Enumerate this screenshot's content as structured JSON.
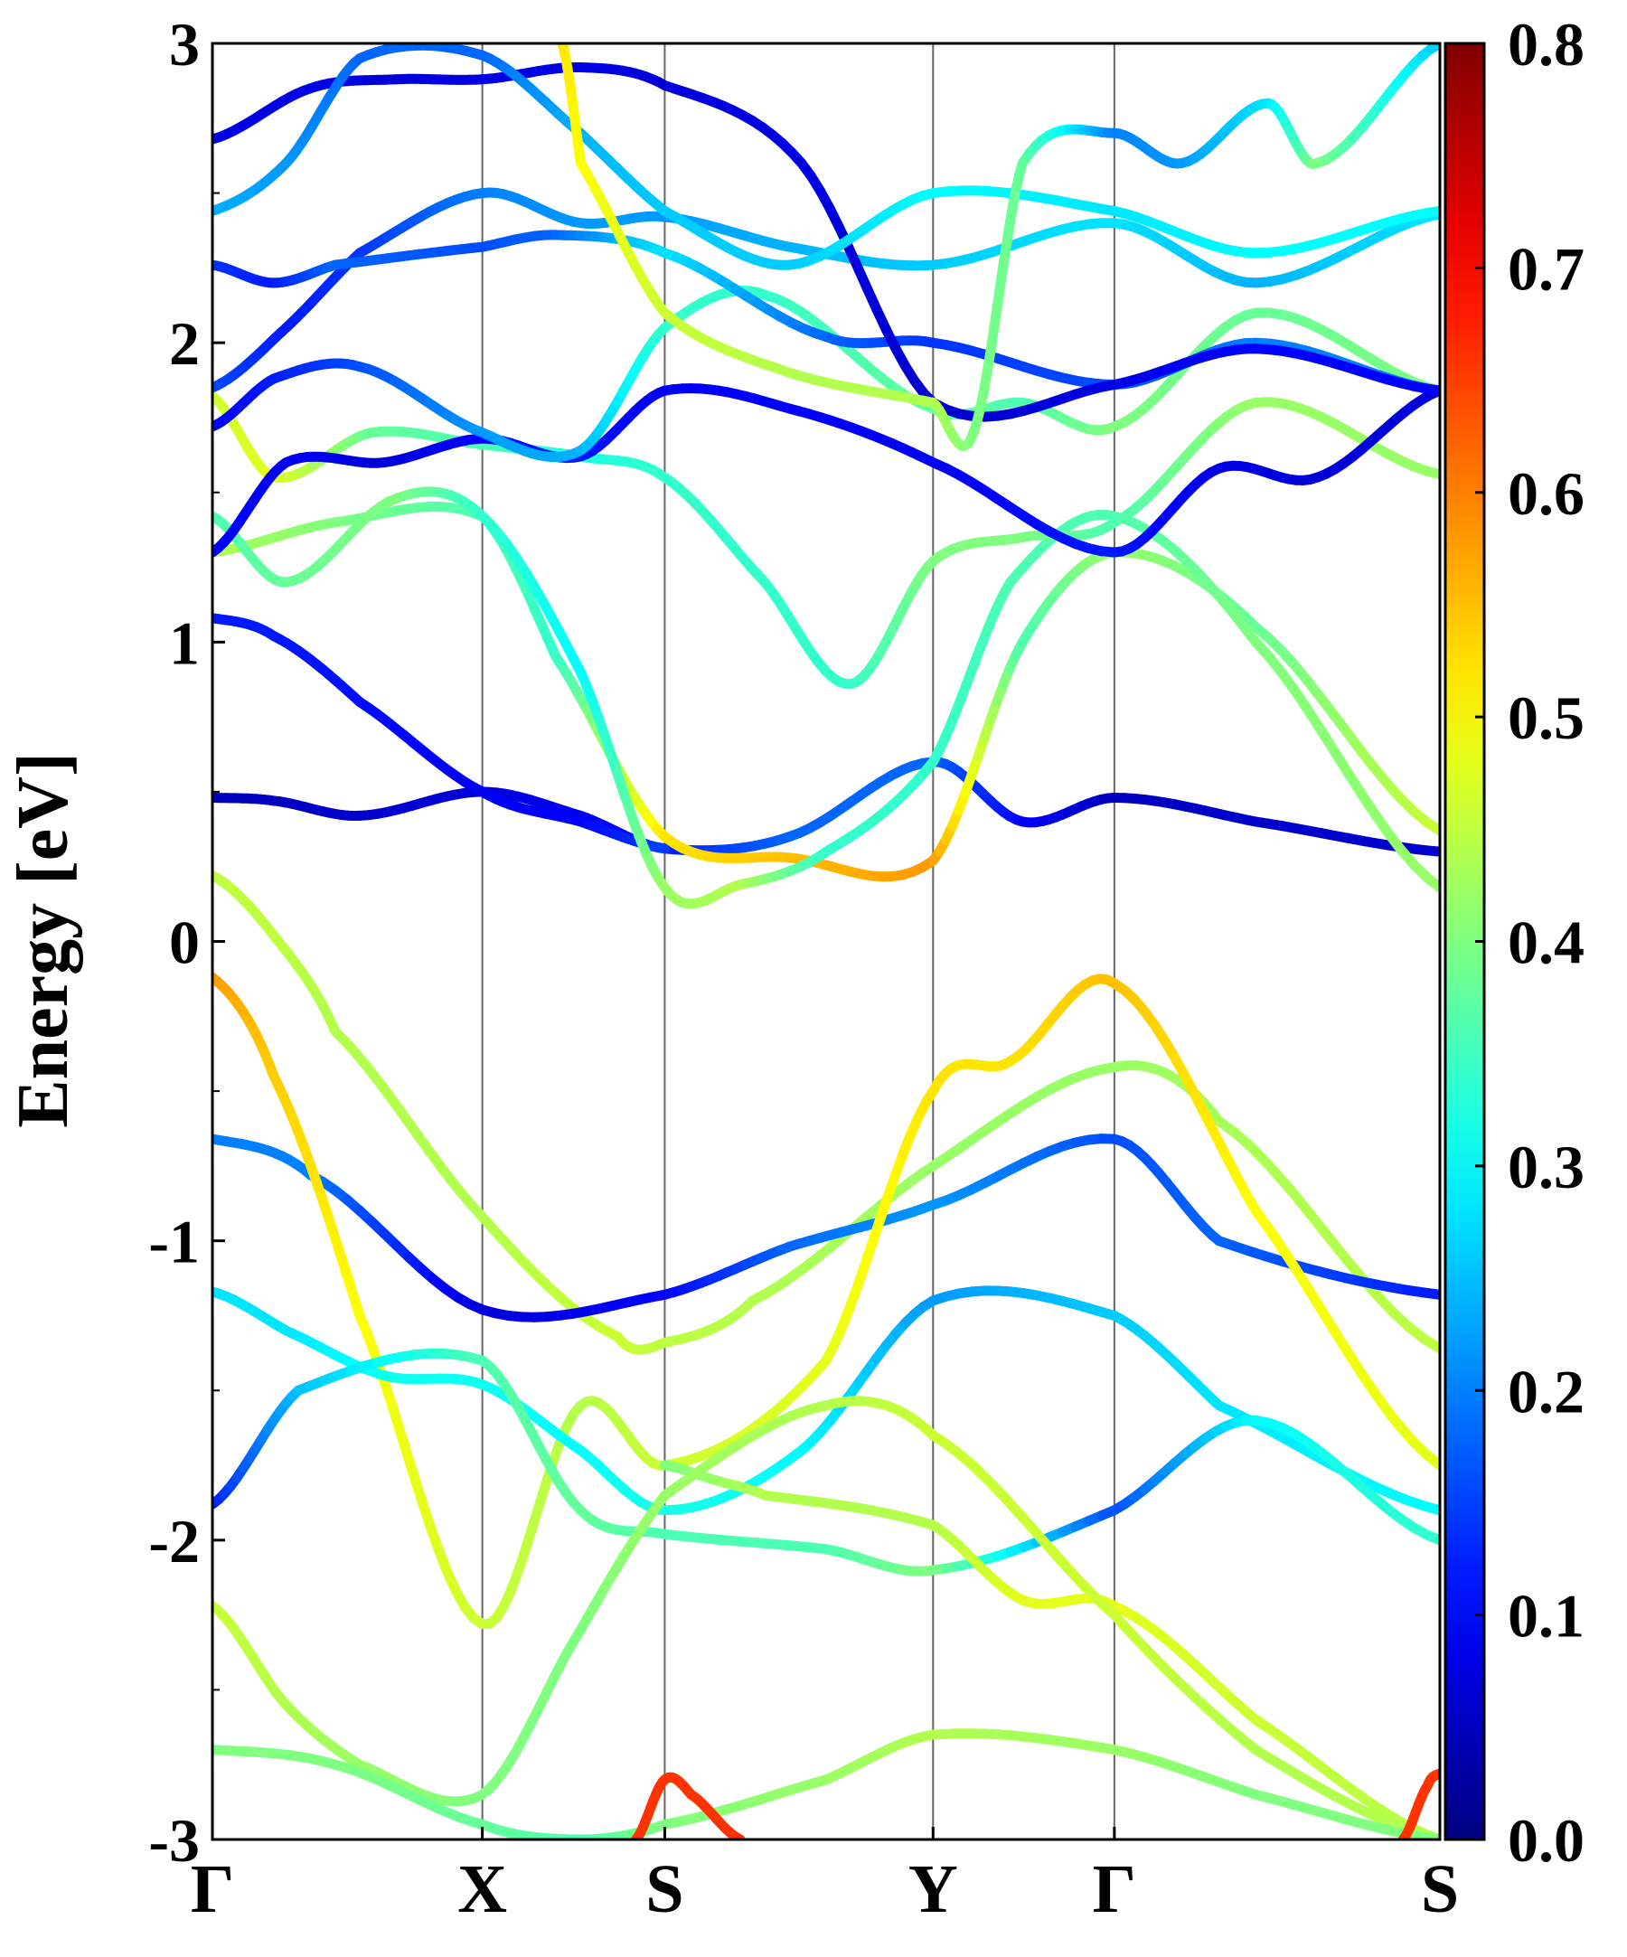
{
  "chart_data": {
    "type": "line",
    "title": "",
    "xlabel": "",
    "ylabel": "Energy [eV]",
    "ylim": [
      -3,
      3
    ],
    "y_ticks": [
      "3",
      "2",
      "1",
      "0",
      "-1",
      "-2",
      "-3"
    ],
    "y_tick_values": [
      3,
      2,
      1,
      0,
      -1,
      -2,
      -3
    ],
    "k_labels": [
      "Γ",
      "X",
      "S",
      "Y",
      "Γ",
      "S"
    ],
    "k_positions": [
      0,
      0.2199,
      0.3685,
      0.5871,
      0.7348,
      1.0
    ],
    "grid": false,
    "colormap": "jet",
    "colorbar": {
      "ticks": [
        "0.0",
        "0.1",
        "0.2",
        "0.3",
        "0.4",
        "0.5",
        "0.6",
        "0.7",
        "0.8"
      ],
      "tick_values": [
        0,
        0.1,
        0.2,
        0.3,
        0.4,
        0.5,
        0.6,
        0.7,
        0.8
      ],
      "range": [
        0,
        0.8
      ],
      "position": "right"
    },
    "series": [
      {
        "k": [
          0,
          0.05,
          0.12,
          0.2199,
          0.3,
          0.3685,
          0.47,
          0.5871,
          0.66,
          0.7348,
          0.85,
          1.0
        ],
        "energy": [
          0.48,
          0.47,
          0.42,
          0.5,
          0.42,
          0.31,
          0.35,
          0.6,
          0.4,
          0.48,
          0.4,
          0.3
        ],
        "weight": [
          0.05,
          0.05,
          0.06,
          0.07,
          0.09,
          0.12,
          0.18,
          0.18,
          0.1,
          0.05,
          0.06,
          0.06
        ]
      },
      {
        "k": [
          0,
          0.05,
          0.12,
          0.2199,
          0.3,
          0.3685
        ],
        "energy": [
          1.08,
          1.02,
          0.8,
          0.5,
          0.4,
          0.31
        ],
        "weight": [
          0.12,
          0.12,
          0.11,
          0.09,
          0.1,
          0.15
        ]
      },
      {
        "k": [
          0,
          0.05,
          0.1,
          0.2199,
          0.33,
          0.3685,
          0.44,
          0.5871,
          0.7348,
          0.82,
          1.0
        ],
        "energy": [
          0.22,
          0.02,
          -0.3,
          -0.92,
          -1.32,
          -1.34,
          -1.2,
          -0.75,
          -0.42,
          -0.6,
          -1.36
        ],
        "weight": [
          0.45,
          0.45,
          0.44,
          0.44,
          0.46,
          0.45,
          0.44,
          0.42,
          0.42,
          0.43,
          0.45
        ]
      },
      {
        "k": [
          0,
          0.08,
          0.2199,
          0.3685,
          0.47,
          0.5871,
          0.7348,
          0.82,
          1.0
        ],
        "energy": [
          -0.66,
          -0.78,
          -1.23,
          -1.18,
          -1.02,
          -0.88,
          -0.66,
          -1.0,
          -1.18
        ],
        "weight": [
          0.2,
          0.2,
          0.07,
          0.1,
          0.18,
          0.22,
          0.16,
          0.18,
          0.12
        ]
      },
      {
        "k": [
          0,
          0.05,
          0.12,
          0.2199,
          0.3,
          0.3685,
          0.5,
          0.5871,
          0.65,
          0.7348,
          0.85,
          1.0
        ],
        "energy": [
          -0.12,
          -0.45,
          -1.25,
          -2.28,
          -1.55,
          -1.75,
          -1.4,
          -0.5,
          -0.4,
          -0.14,
          -0.9,
          -1.75
        ],
        "weight": [
          0.58,
          0.54,
          0.5,
          0.46,
          0.44,
          0.46,
          0.48,
          0.52,
          0.52,
          0.55,
          0.5,
          0.48
        ]
      },
      {
        "k": [
          0,
          0.06,
          0.14,
          0.2199,
          0.3,
          0.3685,
          0.48,
          0.5871,
          0.7348,
          0.82,
          1.0
        ],
        "energy": [
          -1.17,
          -1.3,
          -1.45,
          -1.48,
          -1.7,
          -1.9,
          -1.7,
          -1.2,
          -1.25,
          -1.55,
          -1.9
        ],
        "weight": [
          0.28,
          0.28,
          0.31,
          0.31,
          0.3,
          0.32,
          0.3,
          0.22,
          0.26,
          0.28,
          0.3
        ]
      },
      {
        "k": [
          0,
          0.07,
          0.2199,
          0.3,
          0.3685,
          0.5,
          0.5871,
          0.7348,
          0.85,
          1.0
        ],
        "energy": [
          -1.88,
          -1.5,
          -1.4,
          -1.9,
          -1.98,
          -2.03,
          -2.1,
          -1.9,
          -1.6,
          -2.0
        ],
        "weight": [
          0.12,
          0.25,
          0.36,
          0.38,
          0.36,
          0.36,
          0.4,
          0.16,
          0.3,
          0.34
        ]
      },
      {
        "k": [
          0,
          0.1,
          0.2199,
          0.28,
          0.3685,
          0.47,
          0.5871,
          0.66,
          0.7348,
          0.85,
          1.0
        ],
        "energy": [
          1.3,
          1.4,
          1.42,
          0.95,
          0.35,
          0.28,
          0.27,
          1.0,
          1.3,
          1.05,
          0.37
        ],
        "weight": [
          0.44,
          0.4,
          0.36,
          0.34,
          0.52,
          0.55,
          0.58,
          0.36,
          0.42,
          0.38,
          0.46
        ]
      },
      {
        "k": [
          0,
          0.06,
          0.15,
          0.2199,
          0.3,
          0.3685,
          0.43,
          0.5,
          0.5871,
          0.65,
          0.7348,
          0.85,
          1.0
        ],
        "energy": [
          1.42,
          1.2,
          1.48,
          1.42,
          0.9,
          0.18,
          0.19,
          0.3,
          0.6,
          1.2,
          1.42,
          1.0,
          0.18
        ],
        "weight": [
          0.36,
          0.38,
          0.4,
          0.34,
          0.3,
          0.42,
          0.44,
          0.34,
          0.34,
          0.36,
          0.36,
          0.4,
          0.42
        ]
      },
      {
        "k": [
          0,
          0.05,
          0.13,
          0.2199,
          0.3,
          0.3685,
          0.45,
          0.52,
          0.5871,
          0.66,
          0.7348,
          0.85,
          1.0
        ],
        "energy": [
          1.82,
          1.55,
          1.7,
          1.66,
          1.62,
          1.55,
          1.2,
          0.86,
          1.27,
          1.35,
          1.4,
          1.8,
          1.56
        ],
        "weight": [
          0.46,
          0.48,
          0.38,
          0.36,
          0.32,
          0.34,
          0.34,
          0.34,
          0.4,
          0.4,
          0.36,
          0.42,
          0.42
        ]
      },
      {
        "k": [
          0,
          0.06,
          0.14,
          0.2199,
          0.3,
          0.3685,
          0.47,
          0.5871,
          0.7348,
          0.82,
          0.9,
          1.0
        ],
        "energy": [
          1.3,
          1.6,
          1.6,
          1.68,
          1.62,
          1.84,
          1.78,
          1.6,
          1.3,
          1.58,
          1.55,
          1.84
        ],
        "weight": [
          0.1,
          0.09,
          0.07,
          0.1,
          0.12,
          0.09,
          0.1,
          0.09,
          0.12,
          0.08,
          0.07,
          0.07
        ]
      },
      {
        "k": [
          0,
          0.05,
          0.12,
          0.2199,
          0.3,
          0.3685,
          0.45,
          0.5871,
          0.66,
          0.7348,
          0.85,
          1.0
        ],
        "energy": [
          1.72,
          1.88,
          1.92,
          1.7,
          1.64,
          2.05,
          2.16,
          1.78,
          1.8,
          1.72,
          2.1,
          1.84
        ],
        "weight": [
          0.1,
          0.12,
          0.16,
          0.22,
          0.24,
          0.34,
          0.34,
          0.38,
          0.36,
          0.4,
          0.38,
          0.4
        ]
      },
      {
        "k": [
          0,
          0.06,
          0.12,
          0.2199,
          0.3,
          0.3685,
          0.47,
          0.5871,
          0.7348,
          0.85,
          1.0
        ],
        "energy": [
          1.85,
          2.05,
          2.3,
          2.5,
          2.4,
          2.42,
          2.32,
          2.26,
          2.4,
          2.2,
          2.43
        ],
        "weight": [
          0.16,
          0.12,
          0.14,
          0.2,
          0.22,
          0.22,
          0.24,
          0.26,
          0.28,
          0.24,
          0.28
        ]
      },
      {
        "k": [
          0,
          0.05,
          0.1,
          0.2199,
          0.28,
          0.3685,
          0.5,
          0.5871,
          0.7348,
          0.85,
          1.0
        ],
        "energy": [
          2.26,
          2.2,
          2.26,
          2.32,
          2.36,
          2.3,
          2.02,
          2.0,
          1.86,
          2.0,
          1.84
        ],
        "weight": [
          0.14,
          0.12,
          0.18,
          0.16,
          0.18,
          0.28,
          0.18,
          0.14,
          0.16,
          0.2,
          0.2
        ]
      },
      {
        "k": [
          0,
          0.08,
          0.15,
          0.2199,
          0.3,
          0.3685,
          0.48,
          0.5871,
          0.7348,
          0.85,
          1.0
        ],
        "energy": [
          2.68,
          2.85,
          2.88,
          2.88,
          2.92,
          2.86,
          2.6,
          1.8,
          1.86,
          1.98,
          1.84
        ],
        "weight": [
          0.08,
          0.08,
          0.07,
          0.08,
          0.08,
          0.07,
          0.08,
          0.06,
          0.08,
          0.1,
          0.1
        ]
      },
      {
        "k": [
          0,
          0.06,
          0.12,
          0.2199,
          0.3,
          0.3685,
          0.47,
          0.5871,
          0.7348,
          0.85,
          1.0
        ],
        "energy": [
          2.44,
          2.6,
          2.95,
          2.96,
          2.7,
          2.44,
          2.26,
          2.5,
          2.44,
          2.3,
          2.44
        ],
        "weight": [
          0.24,
          0.22,
          0.18,
          0.18,
          0.24,
          0.26,
          0.26,
          0.3,
          0.28,
          0.3,
          0.3
        ]
      },
      {
        "k": [
          0.285,
          0.3,
          0.3685,
          0.47,
          0.5871,
          0.62,
          0.66,
          0.7348,
          0.79,
          0.86,
          0.9,
          1.0
        ],
        "energy": [
          3.0,
          2.6,
          2.1,
          1.9,
          1.8,
          1.7,
          2.6,
          2.7,
          2.6,
          2.8,
          2.6,
          3.0
        ],
        "weight": [
          0.52,
          0.5,
          0.46,
          0.44,
          0.44,
          0.4,
          0.38,
          0.2,
          0.22,
          0.28,
          0.4,
          0.26
        ]
      },
      {
        "k": [
          0.3685,
          0.41,
          0.45,
          0.5871,
          0.66,
          0.7348,
          0.85,
          1.0
        ],
        "energy": [
          -1.75,
          -1.8,
          -1.85,
          -1.95,
          -2.2,
          -2.22,
          -2.6,
          -3.0
        ],
        "weight": [
          0.4,
          0.42,
          0.44,
          0.44,
          0.48,
          0.48,
          0.46,
          0.44
        ]
      },
      {
        "k": [
          0,
          0.06,
          0.12,
          0.2199,
          0.3,
          0.3685,
          0.5,
          0.5871,
          0.7348,
          0.85,
          1.0
        ],
        "energy": [
          -2.22,
          -2.55,
          -2.75,
          -2.85,
          -2.3,
          -1.85,
          -1.55,
          -1.65,
          -2.25,
          -2.7,
          -3.0
        ],
        "weight": [
          0.46,
          0.44,
          0.42,
          0.4,
          0.4,
          0.42,
          0.44,
          0.46,
          0.46,
          0.44,
          0.44
        ]
      },
      {
        "k": [
          0,
          0.1,
          0.2199,
          0.3,
          0.3685,
          0.5,
          0.5871,
          0.7348,
          0.85,
          1.0
        ],
        "energy": [
          -2.7,
          -2.75,
          -2.95,
          -3.0,
          -2.95,
          -2.8,
          -2.65,
          -2.7,
          -2.85,
          -3.0
        ],
        "weight": [
          0.4,
          0.4,
          0.38,
          0.36,
          0.4,
          0.42,
          0.44,
          0.42,
          0.4,
          0.4
        ]
      },
      {
        "k": [
          0.345,
          0.3685,
          0.39,
          0.43
        ],
        "energy": [
          -3.0,
          -2.8,
          -2.85,
          -3.0
        ],
        "weight": [
          0.66,
          0.66,
          0.66,
          0.66
        ]
      },
      {
        "k": [
          0.97,
          0.99,
          1.0
        ],
        "energy": [
          -3.0,
          -2.82,
          -2.78
        ],
        "weight": [
          0.66,
          0.66,
          0.66
        ]
      }
    ]
  }
}
